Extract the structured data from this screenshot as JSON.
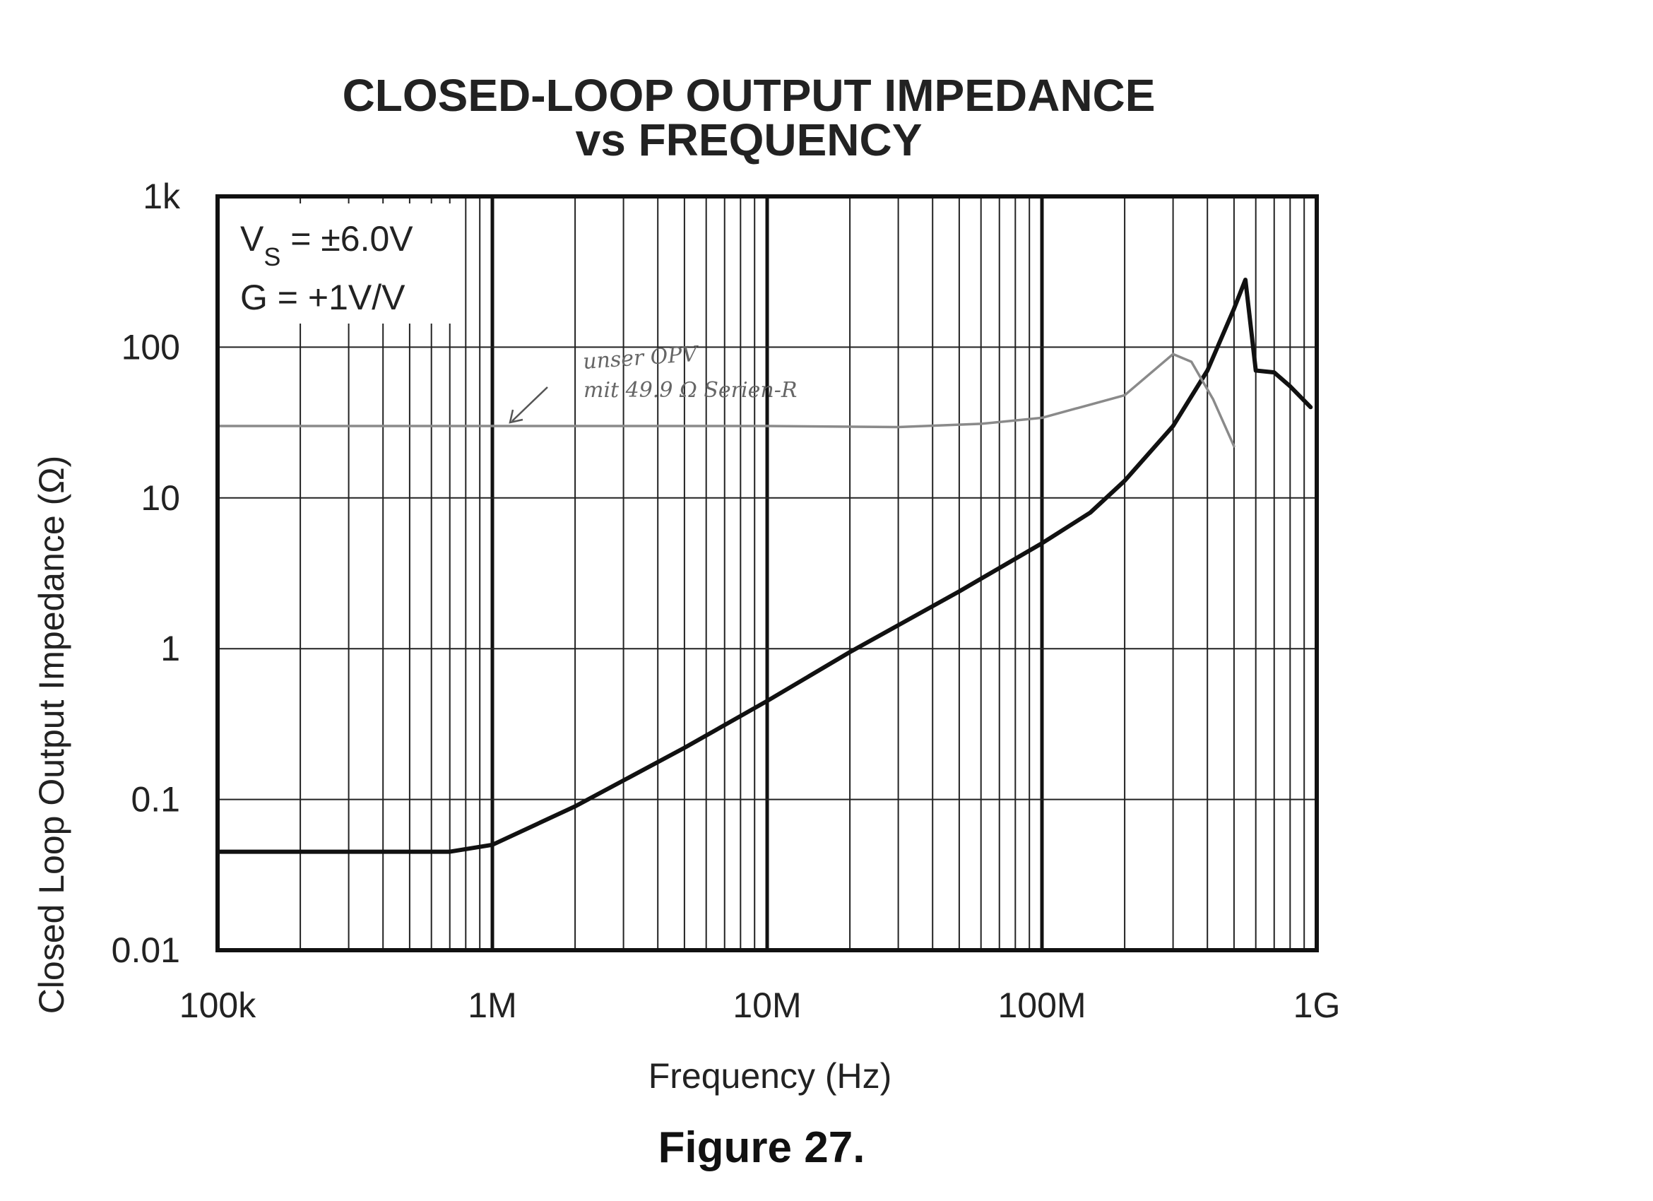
{
  "chart_data": {
    "type": "line",
    "title": [
      "CLOSED-LOOP OUTPUT IMPEDANCE",
      "vs FREQUENCY"
    ],
    "xlabel": "Frequency (Hz)",
    "ylabel": "Closed Loop Output Impedance (Ω)",
    "x_scale": "log",
    "y_scale": "log",
    "xlim": [
      100000,
      1000000000
    ],
    "ylim": [
      0.01,
      1000
    ],
    "x_ticks": [
      {
        "value": 100000,
        "label": "100k"
      },
      {
        "value": 1000000,
        "label": "1M"
      },
      {
        "value": 10000000,
        "label": "10M"
      },
      {
        "value": 100000000,
        "label": "100M"
      },
      {
        "value": 1000000000,
        "label": "1G"
      }
    ],
    "y_ticks": [
      {
        "value": 0.01,
        "label": "0.01"
      },
      {
        "value": 0.1,
        "label": "0.1"
      },
      {
        "value": 1,
        "label": "1"
      },
      {
        "value": 10,
        "label": "10"
      },
      {
        "value": 100,
        "label": "100"
      },
      {
        "value": 1000,
        "label": "1k"
      }
    ],
    "grid": true,
    "annotation": {
      "line1_main": "V",
      "line1_sub": "S",
      "line1_rest": " = ±6.0V",
      "line2": "G = +1V/V",
      "placement": "top-left"
    },
    "handwritten_note": {
      "line1": "unser OPV",
      "line2": "mit 49.9 Ω Serien-R"
    },
    "series": [
      {
        "color": "#111111",
        "points": [
          [
            100000,
            0.045
          ],
          [
            300000,
            0.045
          ],
          [
            700000,
            0.045
          ],
          [
            1000000,
            0.05
          ],
          [
            2000000,
            0.09
          ],
          [
            5000000,
            0.22
          ],
          [
            10000000,
            0.45
          ],
          [
            20000000,
            0.95
          ],
          [
            50000000,
            2.4
          ],
          [
            100000000,
            5
          ],
          [
            150000000,
            8
          ],
          [
            200000000,
            13
          ],
          [
            300000000,
            30
          ],
          [
            400000000,
            70
          ],
          [
            500000000,
            180
          ],
          [
            550000000,
            280
          ],
          [
            580000000,
            120
          ],
          [
            600000000,
            70
          ],
          [
            700000000,
            68
          ],
          [
            800000000,
            55
          ],
          [
            950000000,
            40
          ]
        ]
      },
      {
        "color": "#8a8a8a",
        "points": [
          [
            100000,
            30
          ],
          [
            1000000,
            30
          ],
          [
            10000000,
            30
          ],
          [
            30000000,
            29.5
          ],
          [
            60000000,
            31
          ],
          [
            100000000,
            34
          ],
          [
            200000000,
            48
          ],
          [
            300000000,
            90
          ],
          [
            350000000,
            80
          ],
          [
            420000000,
            45
          ],
          [
            500000000,
            22
          ]
        ]
      }
    ]
  },
  "figure_caption": "Figure 27."
}
